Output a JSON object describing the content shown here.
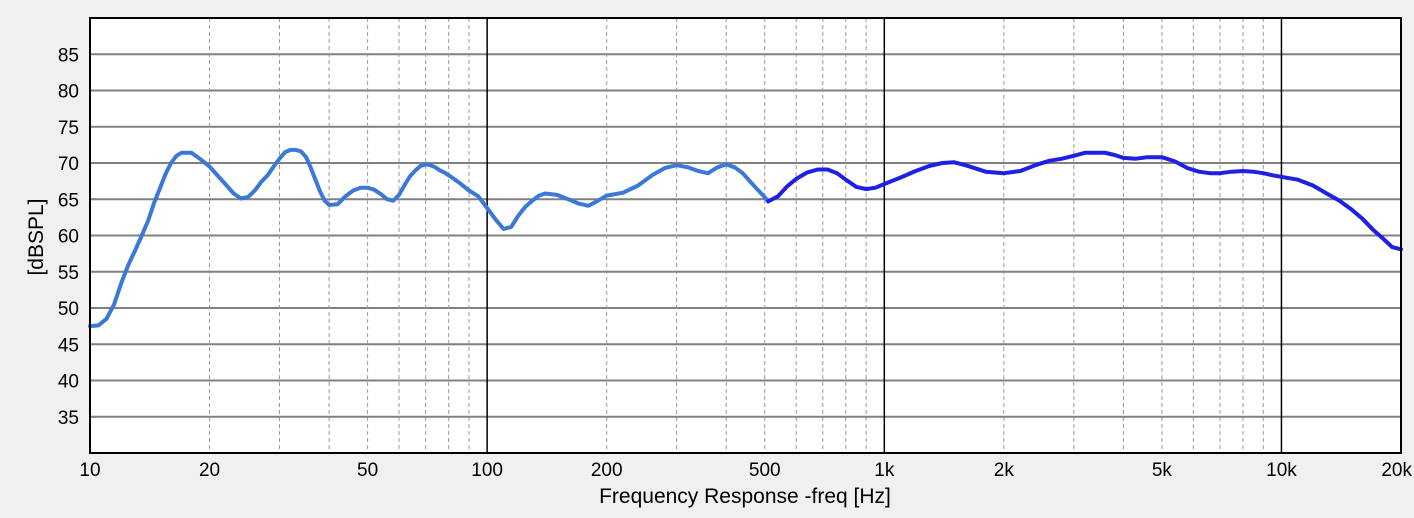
{
  "chart_data": {
    "type": "line",
    "title": "",
    "xlabel": "Frequency Response -freq [Hz]",
    "ylabel": "[dBSPL]",
    "x_scale": "log",
    "xlim": [
      10,
      20000
    ],
    "ylim": [
      30,
      90
    ],
    "grid": true,
    "colors": {
      "low": "#3b78d8",
      "high": "#1f1fe6",
      "background": "#f0f0f0",
      "plot": "#ffffff"
    },
    "x_ticks": [
      {
        "value": 10,
        "label": "10"
      },
      {
        "value": 20,
        "label": "20"
      },
      {
        "value": 50,
        "label": "50"
      },
      {
        "value": 100,
        "label": "100"
      },
      {
        "value": 200,
        "label": "200"
      },
      {
        "value": 500,
        "label": "500"
      },
      {
        "value": 1000,
        "label": "1k"
      },
      {
        "value": 2000,
        "label": "2k"
      },
      {
        "value": 5000,
        "label": "5k"
      },
      {
        "value": 10000,
        "label": "10k"
      },
      {
        "value": 20000,
        "label": "20k"
      }
    ],
    "y_ticks": [
      35,
      40,
      45,
      50,
      55,
      60,
      65,
      70,
      75,
      80,
      85
    ],
    "series": [
      {
        "color": "#3b78d8",
        "x": [
          10,
          10.5,
          11,
          11.5,
          12,
          12.5,
          13,
          13.5,
          14,
          14.5,
          15,
          15.5,
          16,
          16.5,
          17,
          18,
          19,
          20,
          21,
          22,
          23,
          24,
          25,
          26,
          27,
          28,
          29,
          30,
          31,
          32,
          33,
          34,
          35,
          36,
          37,
          38,
          39,
          40,
          42,
          44,
          46,
          48,
          50,
          52,
          54,
          56,
          58,
          60,
          62,
          64,
          66,
          68,
          70,
          72,
          74,
          76,
          78,
          80,
          85,
          90,
          95,
          100,
          105,
          110,
          115,
          120,
          125,
          130,
          135,
          140,
          150,
          160,
          170,
          180,
          190,
          200,
          220,
          240,
          260,
          280,
          300,
          320,
          340,
          360,
          380,
          400,
          420,
          440,
          460,
          480,
          500,
          510
        ],
        "y": [
          47.5,
          47.6,
          48.5,
          50.5,
          53.5,
          56,
          58,
          60,
          62,
          64.5,
          66.5,
          68.5,
          70,
          71,
          71.4,
          71.4,
          70.5,
          69.5,
          68.2,
          67,
          65.8,
          65.1,
          65.3,
          66.2,
          67.4,
          68.3,
          69.5,
          70.6,
          71.5,
          71.8,
          71.8,
          71.6,
          70.8,
          69.3,
          67.6,
          66,
          64.8,
          64.2,
          64.3,
          65.4,
          66.2,
          66.6,
          66.6,
          66.3,
          65.7,
          65,
          64.8,
          65.6,
          67,
          68.2,
          69,
          69.6,
          69.8,
          69.7,
          69.4,
          69,
          68.7,
          68.3,
          67.3,
          66.2,
          65.4,
          63.8,
          62.2,
          60.9,
          61.2,
          62.8,
          64,
          64.8,
          65.5,
          65.8,
          65.6,
          65,
          64.4,
          64.1,
          64.8,
          65.5,
          65.9,
          66.9,
          68.3,
          69.3,
          69.7,
          69.4,
          68.9,
          68.6,
          69.4,
          69.8,
          69.4,
          68.6,
          67.4,
          66.3,
          65.3,
          64.7
        ]
      },
      {
        "color": "#1f1fe6",
        "x": [
          510,
          540,
          570,
          600,
          640,
          680,
          720,
          760,
          800,
          850,
          900,
          950,
          1000,
          1100,
          1200,
          1300,
          1400,
          1500,
          1600,
          1800,
          2000,
          2200,
          2400,
          2600,
          2800,
          3000,
          3200,
          3400,
          3600,
          3800,
          4000,
          4300,
          4600,
          5000,
          5400,
          5800,
          6200,
          6600,
          7000,
          7500,
          8000,
          8500,
          9000,
          9500,
          10000,
          11000,
          12000,
          13000,
          14000,
          15000,
          16000,
          17000,
          18000,
          19000,
          20000
        ],
        "y": [
          64.7,
          65.4,
          66.8,
          67.8,
          68.7,
          69.1,
          69.1,
          68.6,
          67.7,
          66.7,
          66.4,
          66.6,
          67.1,
          68,
          68.9,
          69.6,
          70,
          70.1,
          69.7,
          68.8,
          68.6,
          68.9,
          69.7,
          70.3,
          70.6,
          71,
          71.4,
          71.4,
          71.4,
          71.1,
          70.7,
          70.6,
          70.8,
          70.8,
          70.2,
          69.3,
          68.8,
          68.6,
          68.6,
          68.8,
          68.9,
          68.8,
          68.6,
          68.3,
          68.1,
          67.7,
          66.9,
          65.8,
          64.8,
          63.6,
          62.3,
          60.8,
          59.6,
          58.4,
          58.1
        ]
      }
    ]
  }
}
